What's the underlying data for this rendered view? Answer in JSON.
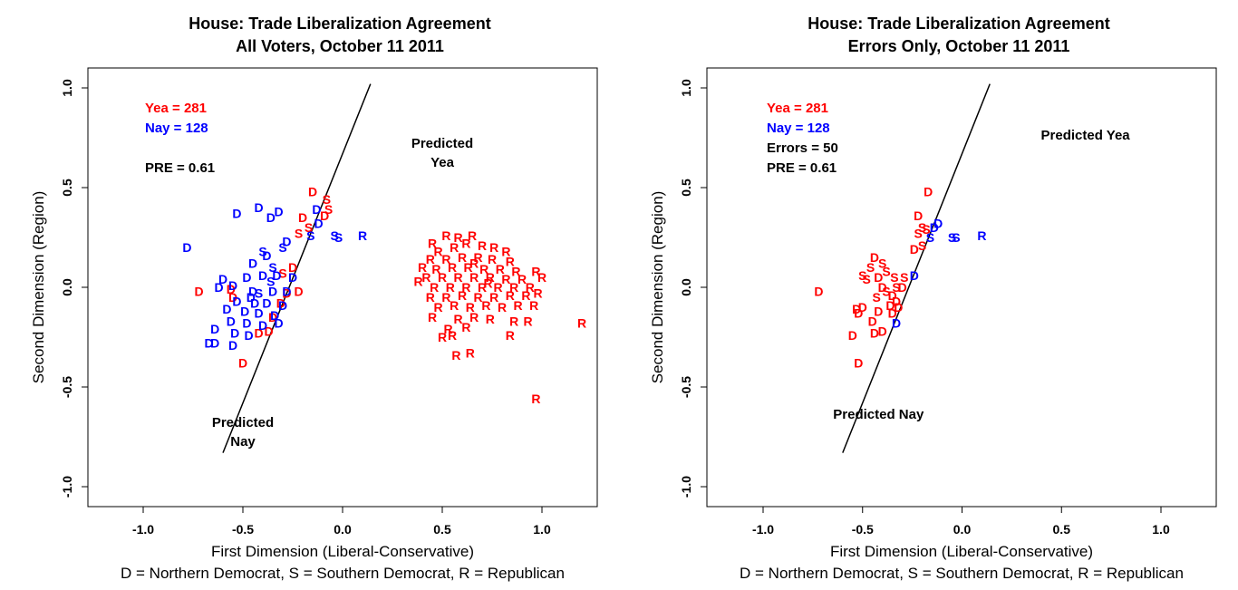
{
  "colors": {
    "yea": "#ff0000",
    "nay": "#0000ff",
    "line": "#000000"
  },
  "chart_data": [
    {
      "type": "scatter",
      "id": "left",
      "title": "House: Trade Liberalization Agreement",
      "subtitle": "All Voters, October 11 2011",
      "xlabel": "First Dimension (Liberal-Conservative)",
      "ylabel": "Second Dimension (Region)",
      "legend_note": "D = Northern Democrat, S = Southern Democrat, R = Republican",
      "xlim": [
        -1.0,
        1.0
      ],
      "ylim": [
        -1.0,
        1.0
      ],
      "x_ticks": [
        "-1.0",
        "-0.5",
        "0.0",
        "0.5",
        "1.0"
      ],
      "y_ticks": [
        "-1.0",
        "-0.5",
        "0.0",
        "0.5",
        "1.0"
      ],
      "stats": [
        {
          "label": "Yea =  281",
          "color": "yea"
        },
        {
          "label": "Nay =  128",
          "color": "nay"
        },
        {
          "label": "PRE =  0.61",
          "color": "text"
        }
      ],
      "region_labels": [
        {
          "lines": [
            "Predicted",
            "Yea"
          ],
          "x": 0.5,
          "y": 0.7
        },
        {
          "lines": [
            "Predicted",
            "Nay"
          ],
          "x": -0.5,
          "y": -0.7
        }
      ],
      "cutting_line": {
        "x1": -0.6,
        "y1": -0.83,
        "x2": 0.14,
        "y2": 1.02
      },
      "points": [
        [
          "D",
          -0.15,
          0.48,
          "yea"
        ],
        [
          "S",
          -0.08,
          0.44,
          "yea"
        ],
        [
          "S",
          -0.07,
          0.39,
          "yea"
        ],
        [
          "D",
          -0.09,
          0.36,
          "yea"
        ],
        [
          "D",
          -0.2,
          0.35,
          "yea"
        ],
        [
          "S",
          -0.17,
          0.3,
          "yea"
        ],
        [
          "S",
          -0.22,
          0.27,
          "yea"
        ],
        [
          "D",
          -0.25,
          0.1,
          "yea"
        ],
        [
          "D",
          -0.22,
          -0.02,
          "yea"
        ],
        [
          "D",
          -0.28,
          -0.03,
          "yea"
        ],
        [
          "D",
          -0.31,
          -0.08,
          "yea"
        ],
        [
          "D",
          -0.35,
          -0.15,
          "yea"
        ],
        [
          "D",
          -0.37,
          -0.22,
          "yea"
        ],
        [
          "D",
          -0.42,
          -0.23,
          "yea"
        ],
        [
          "D",
          -0.5,
          -0.38,
          "yea"
        ],
        [
          "D",
          -0.56,
          -0.01,
          "yea"
        ],
        [
          "D",
          -0.72,
          -0.02,
          "yea"
        ],
        [
          "D",
          -0.55,
          -0.05,
          "yea"
        ],
        [
          "S",
          -0.3,
          0.07,
          "yea"
        ],
        [
          "D",
          -0.53,
          0.37,
          "nay"
        ],
        [
          "D",
          -0.42,
          0.4,
          "nay"
        ],
        [
          "D",
          -0.36,
          0.35,
          "nay"
        ],
        [
          "D",
          -0.32,
          0.38,
          "nay"
        ],
        [
          "D",
          -0.13,
          0.39,
          "nay"
        ],
        [
          "D",
          -0.12,
          0.32,
          "nay"
        ],
        [
          "S",
          -0.16,
          0.26,
          "nay"
        ],
        [
          "S",
          -0.04,
          0.26,
          "nay"
        ],
        [
          "S",
          -0.02,
          0.25,
          "nay"
        ],
        [
          "D",
          -0.78,
          0.2,
          "nay"
        ],
        [
          "S",
          -0.4,
          0.18,
          "nay"
        ],
        [
          "S",
          -0.3,
          0.2,
          "nay"
        ],
        [
          "D",
          -0.28,
          0.23,
          "nay"
        ],
        [
          "D",
          -0.45,
          0.12,
          "nay"
        ],
        [
          "D",
          -0.38,
          0.16,
          "nay"
        ],
        [
          "S",
          -0.35,
          0.1,
          "nay"
        ],
        [
          "D",
          -0.25,
          0.05,
          "nay"
        ],
        [
          "D",
          -0.48,
          0.05,
          "nay"
        ],
        [
          "D",
          -0.4,
          0.06,
          "nay"
        ],
        [
          "D",
          -0.33,
          0.06,
          "nay"
        ],
        [
          "D",
          -0.6,
          0.04,
          "nay"
        ],
        [
          "D",
          -0.62,
          0.0,
          "nay"
        ],
        [
          "D",
          -0.55,
          0.01,
          "nay"
        ],
        [
          "D",
          -0.45,
          -0.02,
          "nay"
        ],
        [
          "D",
          -0.35,
          -0.02,
          "nay"
        ],
        [
          "D",
          -0.28,
          -0.02,
          "nay"
        ],
        [
          "D",
          -0.53,
          -0.07,
          "nay"
        ],
        [
          "D",
          -0.44,
          -0.08,
          "nay"
        ],
        [
          "D",
          -0.38,
          -0.08,
          "nay"
        ],
        [
          "D",
          -0.3,
          -0.09,
          "nay"
        ],
        [
          "D",
          -0.58,
          -0.11,
          "nay"
        ],
        [
          "D",
          -0.49,
          -0.12,
          "nay"
        ],
        [
          "D",
          -0.42,
          -0.13,
          "nay"
        ],
        [
          "D",
          -0.34,
          -0.14,
          "nay"
        ],
        [
          "D",
          -0.56,
          -0.17,
          "nay"
        ],
        [
          "D",
          -0.48,
          -0.18,
          "nay"
        ],
        [
          "D",
          -0.4,
          -0.19,
          "nay"
        ],
        [
          "D",
          -0.32,
          -0.18,
          "nay"
        ],
        [
          "D",
          -0.64,
          -0.21,
          "nay"
        ],
        [
          "D",
          -0.54,
          -0.23,
          "nay"
        ],
        [
          "D",
          -0.47,
          -0.24,
          "nay"
        ],
        [
          "D",
          -0.67,
          -0.28,
          "nay"
        ],
        [
          "D",
          -0.64,
          -0.28,
          "nay"
        ],
        [
          "D",
          -0.55,
          -0.29,
          "nay"
        ],
        [
          "S",
          -0.42,
          -0.03,
          "nay"
        ],
        [
          "S",
          -0.36,
          0.03,
          "nay"
        ],
        [
          "D",
          -0.46,
          -0.05,
          "nay"
        ],
        [
          "R",
          0.1,
          0.26,
          "nay"
        ],
        [
          "R",
          0.45,
          0.22,
          "yea"
        ],
        [
          "R",
          0.52,
          0.26,
          "yea"
        ],
        [
          "R",
          0.58,
          0.25,
          "yea"
        ],
        [
          "R",
          0.65,
          0.26,
          "yea"
        ],
        [
          "R",
          0.48,
          0.18,
          "yea"
        ],
        [
          "R",
          0.56,
          0.2,
          "yea"
        ],
        [
          "R",
          0.62,
          0.22,
          "yea"
        ],
        [
          "R",
          0.7,
          0.21,
          "yea"
        ],
        [
          "R",
          0.76,
          0.2,
          "yea"
        ],
        [
          "R",
          0.82,
          0.18,
          "yea"
        ],
        [
          "R",
          0.44,
          0.14,
          "yea"
        ],
        [
          "R",
          0.52,
          0.14,
          "yea"
        ],
        [
          "R",
          0.6,
          0.15,
          "yea"
        ],
        [
          "R",
          0.68,
          0.15,
          "yea"
        ],
        [
          "R",
          0.75,
          0.14,
          "yea"
        ],
        [
          "R",
          0.84,
          0.13,
          "yea"
        ],
        [
          "R",
          0.47,
          0.09,
          "yea"
        ],
        [
          "R",
          0.55,
          0.1,
          "yea"
        ],
        [
          "R",
          0.63,
          0.1,
          "yea"
        ],
        [
          "R",
          0.71,
          0.09,
          "yea"
        ],
        [
          "R",
          0.79,
          0.09,
          "yea"
        ],
        [
          "R",
          0.87,
          0.08,
          "yea"
        ],
        [
          "R",
          0.42,
          0.05,
          "yea"
        ],
        [
          "R",
          0.5,
          0.05,
          "yea"
        ],
        [
          "R",
          0.58,
          0.05,
          "yea"
        ],
        [
          "R",
          0.66,
          0.05,
          "yea"
        ],
        [
          "R",
          0.74,
          0.05,
          "yea"
        ],
        [
          "R",
          0.82,
          0.04,
          "yea"
        ],
        [
          "R",
          0.9,
          0.04,
          "yea"
        ],
        [
          "R",
          0.97,
          0.08,
          "yea"
        ],
        [
          "R",
          1.0,
          0.05,
          "yea"
        ],
        [
          "R",
          0.46,
          0.0,
          "yea"
        ],
        [
          "R",
          0.54,
          0.0,
          "yea"
        ],
        [
          "R",
          0.62,
          0.0,
          "yea"
        ],
        [
          "R",
          0.7,
          0.0,
          "yea"
        ],
        [
          "R",
          0.78,
          0.0,
          "yea"
        ],
        [
          "R",
          0.86,
          0.0,
          "yea"
        ],
        [
          "R",
          0.94,
          0.0,
          "yea"
        ],
        [
          "R",
          0.44,
          -0.05,
          "yea"
        ],
        [
          "R",
          0.52,
          -0.05,
          "yea"
        ],
        [
          "R",
          0.6,
          -0.04,
          "yea"
        ],
        [
          "R",
          0.68,
          -0.05,
          "yea"
        ],
        [
          "R",
          0.76,
          -0.05,
          "yea"
        ],
        [
          "R",
          0.84,
          -0.04,
          "yea"
        ],
        [
          "R",
          0.92,
          -0.04,
          "yea"
        ],
        [
          "R",
          0.98,
          -0.03,
          "yea"
        ],
        [
          "R",
          0.48,
          -0.1,
          "yea"
        ],
        [
          "R",
          0.56,
          -0.09,
          "yea"
        ],
        [
          "R",
          0.64,
          -0.1,
          "yea"
        ],
        [
          "R",
          0.72,
          -0.09,
          "yea"
        ],
        [
          "R",
          0.8,
          -0.1,
          "yea"
        ],
        [
          "R",
          0.88,
          -0.09,
          "yea"
        ],
        [
          "R",
          0.96,
          -0.09,
          "yea"
        ],
        [
          "R",
          0.45,
          -0.15,
          "yea"
        ],
        [
          "R",
          0.58,
          -0.16,
          "yea"
        ],
        [
          "R",
          0.66,
          -0.15,
          "yea"
        ],
        [
          "R",
          0.74,
          -0.16,
          "yea"
        ],
        [
          "R",
          0.86,
          -0.17,
          "yea"
        ],
        [
          "R",
          0.93,
          -0.17,
          "yea"
        ],
        [
          "R",
          0.53,
          -0.21,
          "yea"
        ],
        [
          "R",
          0.62,
          -0.2,
          "yea"
        ],
        [
          "R",
          0.5,
          -0.25,
          "yea"
        ],
        [
          "R",
          0.55,
          -0.24,
          "yea"
        ],
        [
          "R",
          0.84,
          -0.24,
          "yea"
        ],
        [
          "R",
          0.57,
          -0.34,
          "yea"
        ],
        [
          "R",
          0.64,
          -0.33,
          "yea"
        ],
        [
          "R",
          1.2,
          -0.18,
          "yea"
        ],
        [
          "R",
          0.97,
          -0.56,
          "yea"
        ],
        [
          "R",
          0.4,
          0.1,
          "yea"
        ],
        [
          "R",
          0.38,
          0.03,
          "yea"
        ],
        [
          "R",
          0.66,
          0.12,
          "yea"
        ],
        [
          "R",
          0.73,
          0.02,
          "yea"
        ]
      ]
    },
    {
      "type": "scatter",
      "id": "right",
      "title": "House: Trade Liberalization Agreement",
      "subtitle": "Errors Only, October 11 2011",
      "xlabel": "First Dimension (Liberal-Conservative)",
      "ylabel": "Second Dimension (Region)",
      "legend_note": "D = Northern Democrat, S = Southern Democrat, R = Republican",
      "xlim": [
        -1.0,
        1.0
      ],
      "ylim": [
        -1.0,
        1.0
      ],
      "x_ticks": [
        "-1.0",
        "-0.5",
        "0.0",
        "0.5",
        "1.0"
      ],
      "y_ticks": [
        "-1.0",
        "-0.5",
        "0.0",
        "0.5",
        "1.0"
      ],
      "stats": [
        {
          "label": "Yea =  281",
          "color": "yea"
        },
        {
          "label": "Nay =  128",
          "color": "nay"
        },
        {
          "label": "Errors =  50",
          "color": "text"
        },
        {
          "label": "PRE =  0.61",
          "color": "text"
        }
      ],
      "region_labels": [
        {
          "lines": [
            "Predicted Yea"
          ],
          "x": 0.62,
          "y": 0.74
        },
        {
          "lines": [
            "Predicted Nay"
          ],
          "x": -0.42,
          "y": -0.66
        }
      ],
      "cutting_line": {
        "x1": -0.6,
        "y1": -0.83,
        "x2": 0.14,
        "y2": 1.02
      },
      "points": [
        [
          "D",
          -0.17,
          0.48,
          "yea"
        ],
        [
          "D",
          -0.22,
          0.36,
          "yea"
        ],
        [
          "S",
          -0.2,
          0.3,
          "yea"
        ],
        [
          "S",
          -0.18,
          0.29,
          "yea"
        ],
        [
          "S",
          -0.22,
          0.27,
          "yea"
        ],
        [
          "S",
          -0.2,
          0.21,
          "yea"
        ],
        [
          "D",
          -0.24,
          0.19,
          "yea"
        ],
        [
          "D",
          -0.44,
          0.15,
          "yea"
        ],
        [
          "S",
          -0.4,
          0.12,
          "yea"
        ],
        [
          "S",
          -0.46,
          0.1,
          "yea"
        ],
        [
          "S",
          -0.38,
          0.08,
          "yea"
        ],
        [
          "D",
          -0.42,
          0.05,
          "yea"
        ],
        [
          "S",
          -0.5,
          0.06,
          "yea"
        ],
        [
          "S",
          -0.48,
          0.04,
          "yea"
        ],
        [
          "S",
          -0.34,
          0.05,
          "yea"
        ],
        [
          "S",
          -0.29,
          0.05,
          "yea"
        ],
        [
          "D",
          -0.4,
          0.0,
          "yea"
        ],
        [
          "S",
          -0.33,
          0.0,
          "yea"
        ],
        [
          "S",
          -0.38,
          -0.02,
          "yea"
        ],
        [
          "D",
          -0.35,
          -0.04,
          "yea"
        ],
        [
          "S",
          -0.43,
          -0.05,
          "yea"
        ],
        [
          "D",
          -0.33,
          -0.07,
          "yea"
        ],
        [
          "D",
          -0.36,
          -0.09,
          "yea"
        ],
        [
          "D",
          -0.5,
          -0.1,
          "yea"
        ],
        [
          "D",
          -0.53,
          -0.11,
          "yea"
        ],
        [
          "D",
          -0.42,
          -0.12,
          "yea"
        ],
        [
          "D",
          -0.35,
          -0.13,
          "yea"
        ],
        [
          "D",
          -0.45,
          -0.17,
          "yea"
        ],
        [
          "D",
          -0.4,
          -0.22,
          "yea"
        ],
        [
          "D",
          -0.44,
          -0.23,
          "yea"
        ],
        [
          "D",
          -0.55,
          -0.24,
          "yea"
        ],
        [
          "D",
          -0.52,
          -0.38,
          "yea"
        ],
        [
          "D",
          -0.72,
          -0.02,
          "yea"
        ],
        [
          "D",
          -0.52,
          -0.13,
          "yea"
        ],
        [
          "D",
          -0.32,
          -0.1,
          "yea"
        ],
        [
          "D",
          -0.3,
          0.0,
          "yea"
        ],
        [
          "D",
          -0.12,
          0.32,
          "nay"
        ],
        [
          "D",
          -0.14,
          0.3,
          "nay"
        ],
        [
          "S",
          -0.16,
          0.25,
          "nay"
        ],
        [
          "S",
          -0.05,
          0.25,
          "nay"
        ],
        [
          "S",
          -0.03,
          0.25,
          "nay"
        ],
        [
          "R",
          0.1,
          0.26,
          "nay"
        ],
        [
          "D",
          -0.24,
          0.06,
          "nay"
        ],
        [
          "D",
          -0.33,
          -0.18,
          "nay"
        ]
      ]
    }
  ]
}
